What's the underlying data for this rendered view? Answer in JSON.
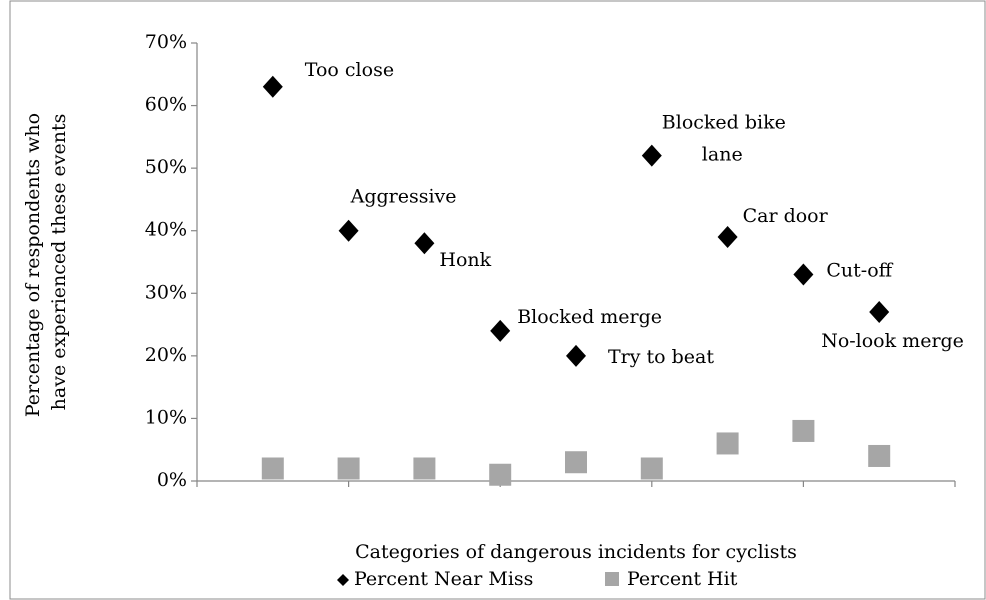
{
  "chart_data": {
    "type": "scatter",
    "xlabel": "Categories of dangerous incidents for cyclists",
    "ylabel": "Percentage of respondents who have experienced these events",
    "x": [
      1,
      2,
      3,
      4,
      5,
      6,
      7,
      8,
      9
    ],
    "xlim": [
      0,
      10
    ],
    "xticks": [
      0,
      2,
      4,
      6,
      8,
      10
    ],
    "ylim": [
      0,
      70
    ],
    "yticks": [
      {
        "value": 0,
        "label": "0%"
      },
      {
        "value": 10,
        "label": "10%"
      },
      {
        "value": 20,
        "label": "20%"
      },
      {
        "value": 30,
        "label": "30%"
      },
      {
        "value": 40,
        "label": "40%"
      },
      {
        "value": 50,
        "label": "50%"
      },
      {
        "value": 60,
        "label": "60%"
      },
      {
        "value": 70,
        "label": "70%"
      }
    ],
    "legend": "bottom",
    "series": [
      {
        "name": "Percent Near Miss",
        "color": "#000000",
        "marker": "diamond",
        "values": [
          63,
          40,
          38,
          24,
          20,
          52,
          39,
          33,
          27
        ],
        "labels": [
          "Too close",
          "Aggressive",
          "Honk",
          "Blocked merge",
          "Try to beat",
          "Blocked bike lane",
          "Car door",
          "Cut-off",
          "No-look merge"
        ]
      },
      {
        "name": "Percent Hit",
        "color": "#a6a6a6",
        "marker": "square",
        "values": [
          2,
          2,
          2,
          1,
          3,
          2,
          6,
          8,
          4
        ]
      }
    ]
  }
}
